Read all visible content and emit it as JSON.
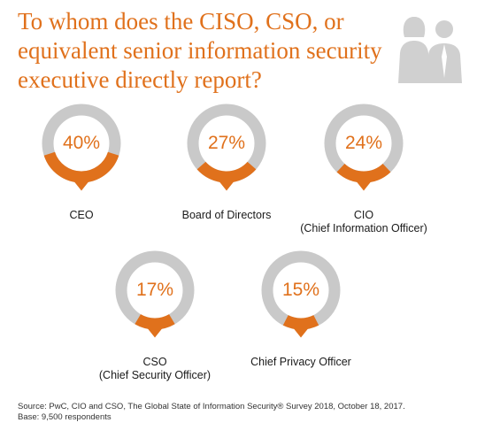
{
  "title": "To whom does the CISO, CSO, or equivalent senior information security executive directly report?",
  "icons": {
    "header": "people-icon"
  },
  "colors": {
    "accent": "#e0711c",
    "ring_track": "#c9c9c9",
    "text": "#1a1a1a"
  },
  "chart_data": {
    "type": "pie",
    "title": "To whom does the CISO, CSO, or equivalent senior information security executive directly report?",
    "items": [
      {
        "label": "CEO",
        "label_sub": "",
        "value": 40,
        "display": "40%"
      },
      {
        "label": "Board of Directors",
        "label_sub": "",
        "value": 27,
        "display": "27%"
      },
      {
        "label": "CIO",
        "label_sub": "(Chief Information Officer)",
        "value": 24,
        "display": "24%"
      },
      {
        "label": "CSO",
        "label_sub": "(Chief Security Officer)",
        "value": 17,
        "display": "17%"
      },
      {
        "label": "Chief Privacy Officer",
        "label_sub": "",
        "value": 15,
        "display": "15%"
      }
    ]
  },
  "source": {
    "line1": "Source: PwC, CIO and CSO, The Global State of Information Security® Survey 2018, October 18, 2017.",
    "line2": "Base: 9,500 respondents"
  }
}
